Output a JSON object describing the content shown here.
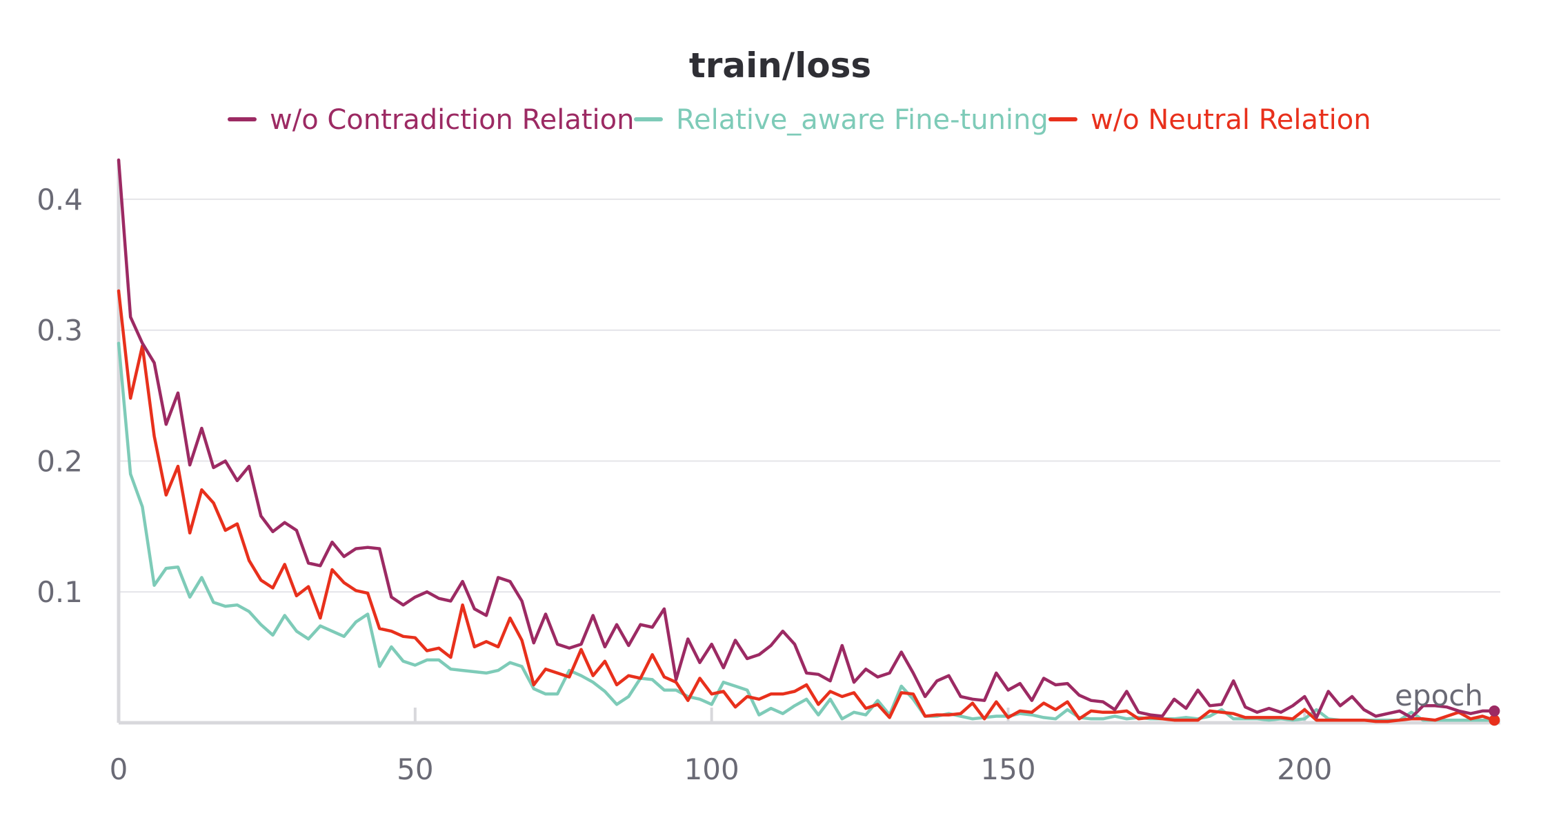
{
  "chart_data": {
    "type": "line",
    "title": "train/loss",
    "xlabel": "epoch",
    "ylabel": "",
    "xlim": [
      0,
      233
    ],
    "ylim": [
      0,
      0.43
    ],
    "xticks": [
      0,
      50,
      100,
      150,
      200
    ],
    "yticks": [
      0.1,
      0.2,
      0.3,
      0.4
    ],
    "xtick_labels": [
      "0",
      "50",
      "100",
      "150",
      "200"
    ],
    "ytick_labels": [
      "0.1",
      "0.2",
      "0.3",
      "0.4"
    ],
    "grid": "horizontal",
    "legend_position": "top",
    "series": [
      {
        "name": "w/o Contradiction Relation",
        "color": "#9c2a63",
        "x": [
          0,
          2,
          4,
          6,
          8,
          10,
          12,
          14,
          16,
          18,
          20,
          22,
          24,
          26,
          28,
          30,
          32,
          34,
          36,
          38,
          40,
          42,
          44,
          46,
          48,
          50,
          52,
          54,
          56,
          58,
          60,
          62,
          64,
          66,
          68,
          70,
          72,
          74,
          76,
          78,
          80,
          82,
          84,
          86,
          88,
          90,
          92,
          94,
          96,
          98,
          100,
          102,
          104,
          106,
          108,
          110,
          112,
          114,
          116,
          118,
          120,
          122,
          124,
          126,
          128,
          130,
          132,
          134,
          136,
          138,
          140,
          142,
          144,
          146,
          148,
          150,
          152,
          154,
          156,
          158,
          160,
          162,
          164,
          166,
          168,
          170,
          172,
          174,
          176,
          178,
          180,
          182,
          184,
          186,
          188,
          190,
          192,
          194,
          196,
          198,
          200,
          202,
          204,
          206,
          208,
          210,
          212,
          214,
          216,
          218,
          220,
          222,
          224,
          226,
          228,
          230,
          232
        ],
        "y": [
          0.43,
          0.31,
          0.29,
          0.275,
          0.228,
          0.252,
          0.197,
          0.225,
          0.195,
          0.2,
          0.185,
          0.196,
          0.158,
          0.146,
          0.153,
          0.147,
          0.122,
          0.12,
          0.138,
          0.127,
          0.133,
          0.134,
          0.133,
          0.096,
          0.09,
          0.096,
          0.1,
          0.095,
          0.093,
          0.108,
          0.087,
          0.082,
          0.111,
          0.108,
          0.093,
          0.061,
          0.083,
          0.06,
          0.057,
          0.06,
          0.082,
          0.058,
          0.075,
          0.059,
          0.075,
          0.073,
          0.087,
          0.033,
          0.064,
          0.046,
          0.06,
          0.042,
          0.063,
          0.049,
          0.052,
          0.059,
          0.07,
          0.06,
          0.038,
          0.037,
          0.032,
          0.059,
          0.031,
          0.041,
          0.035,
          0.038,
          0.054,
          0.038,
          0.02,
          0.032,
          0.036,
          0.02,
          0.018,
          0.017,
          0.038,
          0.025,
          0.03,
          0.017,
          0.034,
          0.029,
          0.03,
          0.021,
          0.017,
          0.016,
          0.01,
          0.024,
          0.008,
          0.006,
          0.005,
          0.018,
          0.011,
          0.025,
          0.013,
          0.014,
          0.032,
          0.012,
          0.008,
          0.011,
          0.008,
          0.013,
          0.02,
          0.004,
          0.024,
          0.013,
          0.02,
          0.01,
          0.005,
          0.007,
          0.009,
          0.004,
          0.013,
          0.013,
          0.012,
          0.009,
          0.007,
          0.009,
          0.009
        ]
      },
      {
        "name": "Relative_aware Fine-tuning",
        "color": "#7ecbb8",
        "x": [
          0,
          2,
          4,
          6,
          8,
          10,
          12,
          14,
          16,
          18,
          20,
          22,
          24,
          26,
          28,
          30,
          32,
          34,
          36,
          38,
          40,
          42,
          44,
          46,
          48,
          50,
          52,
          54,
          56,
          58,
          60,
          62,
          64,
          66,
          68,
          70,
          72,
          74,
          76,
          78,
          80,
          82,
          84,
          86,
          88,
          90,
          92,
          94,
          96,
          98,
          100,
          102,
          104,
          106,
          108,
          110,
          112,
          114,
          116,
          118,
          120,
          122,
          124,
          126,
          128,
          130,
          132,
          134,
          136,
          138,
          140,
          142,
          144,
          146,
          148,
          150,
          152,
          154,
          156,
          158,
          160,
          162,
          164,
          166,
          168,
          170,
          172,
          174,
          176,
          178,
          180,
          182,
          184,
          186,
          188,
          190,
          192,
          194,
          196,
          198,
          200,
          202,
          204,
          206,
          208,
          210,
          212,
          214,
          216,
          218,
          220,
          222,
          224,
          226,
          228,
          230,
          232
        ],
        "y": [
          0.29,
          0.19,
          0.165,
          0.105,
          0.118,
          0.119,
          0.096,
          0.111,
          0.092,
          0.089,
          0.09,
          0.085,
          0.075,
          0.067,
          0.082,
          0.07,
          0.064,
          0.074,
          0.07,
          0.066,
          0.077,
          0.083,
          0.043,
          0.058,
          0.047,
          0.044,
          0.048,
          0.048,
          0.041,
          0.04,
          0.039,
          0.038,
          0.04,
          0.046,
          0.043,
          0.026,
          0.022,
          0.022,
          0.04,
          0.036,
          0.031,
          0.024,
          0.014,
          0.02,
          0.034,
          0.033,
          0.025,
          0.025,
          0.02,
          0.018,
          0.014,
          0.031,
          0.028,
          0.025,
          0.006,
          0.011,
          0.007,
          0.013,
          0.018,
          0.006,
          0.018,
          0.003,
          0.008,
          0.006,
          0.017,
          0.006,
          0.028,
          0.018,
          0.005,
          0.005,
          0.007,
          0.005,
          0.003,
          0.004,
          0.005,
          0.005,
          0.007,
          0.006,
          0.004,
          0.003,
          0.01,
          0.004,
          0.003,
          0.003,
          0.005,
          0.003,
          0.004,
          0.003,
          0.003,
          0.003,
          0.004,
          0.003,
          0.005,
          0.01,
          0.003,
          0.003,
          0.003,
          0.002,
          0.003,
          0.002,
          0.003,
          0.01,
          0.003,
          0.002,
          0.002,
          0.002,
          0.002,
          0.002,
          0.002,
          0.008,
          0.002,
          0.002,
          0.002,
          0.002,
          0.002,
          0.002,
          0.002
        ]
      },
      {
        "name": "w/o Neutral Relation",
        "color": "#e8301c",
        "x": [
          0,
          2,
          4,
          6,
          8,
          10,
          12,
          14,
          16,
          18,
          20,
          22,
          24,
          26,
          28,
          30,
          32,
          34,
          36,
          38,
          40,
          42,
          44,
          46,
          48,
          50,
          52,
          54,
          56,
          58,
          60,
          62,
          64,
          66,
          68,
          70,
          72,
          74,
          76,
          78,
          80,
          82,
          84,
          86,
          88,
          90,
          92,
          94,
          96,
          98,
          100,
          102,
          104,
          106,
          108,
          110,
          112,
          114,
          116,
          118,
          120,
          122,
          124,
          126,
          128,
          130,
          132,
          134,
          136,
          138,
          140,
          142,
          144,
          146,
          148,
          150,
          152,
          154,
          156,
          158,
          160,
          162,
          164,
          166,
          168,
          170,
          172,
          174,
          176,
          178,
          180,
          182,
          184,
          186,
          188,
          190,
          192,
          194,
          196,
          198,
          200,
          202,
          204,
          206,
          208,
          210,
          212,
          214,
          216,
          218,
          220,
          222,
          224,
          226,
          228,
          230,
          232
        ],
        "y": [
          0.33,
          0.248,
          0.288,
          0.219,
          0.174,
          0.196,
          0.145,
          0.178,
          0.168,
          0.147,
          0.152,
          0.124,
          0.109,
          0.103,
          0.121,
          0.097,
          0.104,
          0.08,
          0.117,
          0.107,
          0.101,
          0.099,
          0.072,
          0.07,
          0.066,
          0.065,
          0.055,
          0.057,
          0.05,
          0.09,
          0.058,
          0.062,
          0.058,
          0.08,
          0.063,
          0.029,
          0.041,
          0.038,
          0.035,
          0.056,
          0.036,
          0.047,
          0.029,
          0.036,
          0.034,
          0.052,
          0.035,
          0.031,
          0.017,
          0.034,
          0.022,
          0.024,
          0.012,
          0.02,
          0.018,
          0.022,
          0.022,
          0.024,
          0.029,
          0.014,
          0.024,
          0.02,
          0.023,
          0.011,
          0.014,
          0.004,
          0.023,
          0.022,
          0.005,
          0.006,
          0.006,
          0.007,
          0.015,
          0.003,
          0.016,
          0.004,
          0.009,
          0.008,
          0.015,
          0.01,
          0.016,
          0.003,
          0.009,
          0.008,
          0.008,
          0.009,
          0.003,
          0.004,
          0.003,
          0.002,
          0.002,
          0.002,
          0.009,
          0.008,
          0.007,
          0.004,
          0.004,
          0.004,
          0.004,
          0.003,
          0.01,
          0.002,
          0.002,
          0.002,
          0.002,
          0.002,
          0.001,
          0.001,
          0.002,
          0.003,
          0.003,
          0.002,
          0.005,
          0.008,
          0.003,
          0.005,
          0.002
        ]
      }
    ]
  }
}
